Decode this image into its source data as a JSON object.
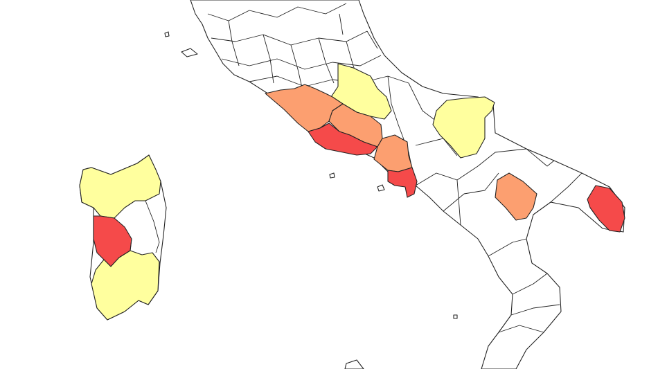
{
  "map": {
    "colors": {
      "low": "#ffff9e",
      "medium": "#fc9f70",
      "high": "#f54a4a",
      "background": "#ffffff",
      "land": "#ffffff",
      "border": "#222222"
    },
    "highlighted_provinces": [
      {
        "id": "p1",
        "category": "low"
      },
      {
        "id": "p2",
        "category": "medium"
      },
      {
        "id": "p3",
        "category": "medium"
      },
      {
        "id": "p4",
        "category": "high"
      },
      {
        "id": "p5",
        "category": "medium"
      },
      {
        "id": "p6",
        "category": "high"
      },
      {
        "id": "p7",
        "category": "low"
      },
      {
        "id": "p8",
        "category": "medium"
      },
      {
        "id": "p9",
        "category": "high"
      },
      {
        "id": "p10",
        "category": "low"
      },
      {
        "id": "p11",
        "category": "high"
      },
      {
        "id": "p12",
        "category": "low"
      }
    ]
  }
}
